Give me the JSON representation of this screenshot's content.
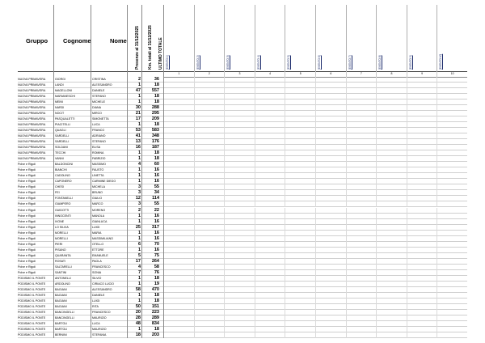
{
  "header": {
    "col_gruppo": "Gruppo",
    "col_cognome": "Cognome",
    "col_nome": "Nome",
    "col_presenze": "Presenze al 31/12/2025",
    "col_km": "Km. totali al 31/12/2025",
    "col_ultimo": "ULTIMO TOTALE"
  },
  "events": [
    "[EVENTO 1]",
    "[EVENTO 2]",
    "[EVENTO 3]",
    "[EVENTO 4]",
    "[EVENTO 5]",
    "[EVENTO 6]",
    "[EVENTO 7]",
    "[EVENTO 8]",
    "[EVENTO 9]",
    "[EVENTO 10]"
  ],
  "event_numbers": [
    "1",
    "2",
    "3",
    "4",
    "5",
    "6",
    "7",
    "8",
    "9",
    "10"
  ],
  "rows": [
    {
      "gruppo": "NUOVA PRIMAVERA",
      "cognome": "GIORGI",
      "nome": "CRISTINA",
      "presenze": "2",
      "km": "36",
      "cells": [
        "",
        "",
        "",
        "",
        "",
        "",
        "",
        "",
        "",
        ""
      ]
    },
    {
      "gruppo": "NUOVA PRIMAVERA",
      "cognome": "LANDI",
      "nome": "ALESSANDRO",
      "presenze": "1",
      "km": "18",
      "cells": [
        "",
        "",
        "",
        "",
        "",
        "",
        "",
        "",
        "",
        ""
      ]
    },
    {
      "gruppo": "NUOVA PRIMAVERA",
      "cognome": "MAGELLONI",
      "nome": "DANIELE",
      "presenze": "47",
      "km": "557",
      "cells": [
        "",
        "",
        "",
        "",
        "",
        "",
        "",
        "",
        "",
        ""
      ]
    },
    {
      "gruppo": "NUOVA PRIMAVERA",
      "cognome": "MARIANESCHI",
      "nome": "STEFANO",
      "presenze": "1",
      "km": "18",
      "cells": [
        "",
        "",
        "",
        "",
        "",
        "",
        "",
        "",
        "",
        ""
      ]
    },
    {
      "gruppo": "NUOVA PRIMAVERA",
      "cognome": "MEINI",
      "nome": "MICHELE",
      "presenze": "1",
      "km": "18",
      "cells": [
        "",
        "",
        "",
        "",
        "",
        "",
        "",
        "",
        "",
        ""
      ]
    },
    {
      "gruppo": "NUOVA PRIMAVERA",
      "cognome": "NARDI",
      "nome": "DIANA",
      "presenze": "30",
      "km": "288",
      "cells": [
        "",
        "",
        "",
        "",
        "",
        "",
        "",
        "",
        "",
        ""
      ]
    },
    {
      "gruppo": "NUOVA PRIMAVERA",
      "cognome": "NOCIT",
      "nome": "MIRCO",
      "presenze": "21",
      "km": "295",
      "cells": [
        "",
        "",
        "",
        "",
        "",
        "",
        "",
        "",
        "",
        ""
      ]
    },
    {
      "gruppo": "NUOVA PRIMAVERA",
      "cognome": "PASQUALETTI",
      "nome": "SIMONETTA",
      "presenze": "17",
      "km": "209",
      "cells": [
        "",
        "",
        "",
        "",
        "",
        "",
        "",
        "",
        "",
        ""
      ]
    },
    {
      "gruppo": "NUOVA PRIMAVERA",
      "cognome": "PIACITELLI",
      "nome": "LUCA",
      "presenze": "1",
      "km": "18",
      "cells": [
        "",
        "",
        "",
        "",
        "",
        "",
        "",
        "",
        "",
        ""
      ]
    },
    {
      "gruppo": "NUOVA PRIMAVERA",
      "cognome": "QUAGLI",
      "nome": "FRANCO",
      "presenze": "53",
      "km": "583",
      "cells": [
        "",
        "",
        "",
        "",
        "",
        "",
        "",
        "",
        "",
        ""
      ]
    },
    {
      "gruppo": "NUOVA PRIMAVERA",
      "cognome": "SARDELLI",
      "nome": "ADRIANO",
      "presenze": "41",
      "km": "348",
      "cells": [
        "",
        "",
        "",
        "",
        "",
        "",
        "",
        "",
        "",
        ""
      ]
    },
    {
      "gruppo": "NUOVA PRIMAVERA",
      "cognome": "SARDELLI",
      "nome": "STEFANO",
      "presenze": "13",
      "km": "176",
      "cells": [
        "",
        "",
        "",
        "",
        "",
        "",
        "",
        "",
        "",
        ""
      ]
    },
    {
      "gruppo": "NUOVA PRIMAVERA",
      "cognome": "SOLDANI",
      "nome": "ELISA",
      "presenze": "16",
      "km": "187",
      "cells": [
        "",
        "",
        "",
        "",
        "",
        "",
        "",
        "",
        "",
        ""
      ]
    },
    {
      "gruppo": "NUOVA PRIMAVERA",
      "cognome": "TECCHI",
      "nome": "ROMINA",
      "presenze": "1",
      "km": "18",
      "cells": [
        "",
        "",
        "",
        "",
        "",
        "",
        "",
        "",
        "",
        ""
      ]
    },
    {
      "gruppo": "NUOVA PRIMAVERA",
      "cognome": "VANNI",
      "nome": "FABRIZIO",
      "presenze": "1",
      "km": "18",
      "cells": [
        "",
        "",
        "",
        "",
        "",
        "",
        "",
        "",
        "",
        ""
      ]
    },
    {
      "gruppo": "Polve e Rigoli",
      "cognome": "BALDONCINI",
      "nome": "MASSIMO",
      "presenze": "4",
      "km": "60",
      "cells": [
        "",
        "",
        "",
        "",
        "",
        "",
        "",
        "",
        "",
        ""
      ]
    },
    {
      "gruppo": "Polve e Rigoli",
      "cognome": "BIANCHI",
      "nome": "FAUSTO",
      "presenze": "1",
      "km": "16",
      "cells": [
        "",
        "",
        "",
        "",
        "",
        "",
        "",
        "",
        "",
        ""
      ]
    },
    {
      "gruppo": "Polve e Rigoli",
      "cognome": "CADOLINO",
      "nome": "LINETTA",
      "presenze": "1",
      "km": "16",
      "cells": [
        "",
        "",
        "",
        "",
        "",
        "",
        "",
        "",
        "",
        ""
      ]
    },
    {
      "gruppo": "Polve e Rigoli",
      "cognome": "CAPONERO",
      "nome": "CARMINE DIEGO",
      "presenze": "1",
      "km": "16",
      "cells": [
        "",
        "",
        "",
        "",
        "",
        "",
        "",
        "",
        "",
        ""
      ]
    },
    {
      "gruppo": "Polve e Rigoli",
      "cognome": "CHESI",
      "nome": "MICHELA",
      "presenze": "3",
      "km": "55",
      "cells": [
        "",
        "",
        "",
        "",
        "",
        "",
        "",
        "",
        "",
        ""
      ]
    },
    {
      "gruppo": "Polve e Rigoli",
      "cognome": "FEI",
      "nome": "BRUNO",
      "presenze": "3",
      "km": "34",
      "cells": [
        "",
        "",
        "",
        "",
        "",
        "",
        "",
        "",
        "",
        ""
      ]
    },
    {
      "gruppo": "Polve e Rigoli",
      "cognome": "FONTANELLI",
      "nome": "GIULIO",
      "presenze": "12",
      "km": "114",
      "cells": [
        "",
        "",
        "",
        "",
        "",
        "",
        "",
        "",
        "",
        ""
      ]
    },
    {
      "gruppo": "Polve e Rigoli",
      "cognome": "GIAMPERO",
      "nome": "MARCO",
      "presenze": "3",
      "km": "55",
      "cells": [
        "",
        "",
        "",
        "",
        "",
        "",
        "",
        "",
        "",
        ""
      ]
    },
    {
      "gruppo": "Polve e Rigoli",
      "cognome": "GUIDOTTI",
      "nome": "MORENO",
      "presenze": "2",
      "km": "22",
      "cells": [
        "",
        "",
        "",
        "",
        "",
        "",
        "",
        "",
        "",
        ""
      ]
    },
    {
      "gruppo": "Polve e Rigoli",
      "cognome": "INNOCENTI",
      "nome": "MANOLA",
      "presenze": "1",
      "km": "16",
      "cells": [
        "",
        "",
        "",
        "",
        "",
        "",
        "",
        "",
        "",
        ""
      ]
    },
    {
      "gruppo": "Polve e Rigoli",
      "cognome": "IVONE",
      "nome": "GIANLUCA",
      "presenze": "1",
      "km": "16",
      "cells": [
        "",
        "",
        "",
        "",
        "",
        "",
        "",
        "",
        "",
        ""
      ]
    },
    {
      "gruppo": "Polve e Rigoli",
      "cognome": "LO SILVIA",
      "nome": "LUIGI",
      "presenze": "25",
      "km": "317",
      "cells": [
        "",
        "",
        "",
        "",
        "",
        "",
        "",
        "",
        "",
        ""
      ]
    },
    {
      "gruppo": "Polve e Rigoli",
      "cognome": "MORELLI",
      "nome": "MARIA",
      "presenze": "1",
      "km": "16",
      "cells": [
        "",
        "",
        "",
        "",
        "",
        "",
        "",
        "",
        "",
        ""
      ]
    },
    {
      "gruppo": "Polve e Rigoli",
      "cognome": "MORELLI",
      "nome": "MASSIMILIANO",
      "presenze": "1",
      "km": "16",
      "cells": [
        "",
        "",
        "",
        "",
        "",
        "",
        "",
        "",
        "",
        ""
      ]
    },
    {
      "gruppo": "Polve e Rigoli",
      "cognome": "PIERI",
      "nome": "OTELLO",
      "presenze": "6",
      "km": "70",
      "cells": [
        "",
        "",
        "",
        "",
        "",
        "",
        "",
        "",
        "",
        ""
      ]
    },
    {
      "gruppo": "Polve e Rigoli",
      "cognome": "PISANO",
      "nome": "ETTORE",
      "presenze": "1",
      "km": "16",
      "cells": [
        "",
        "",
        "",
        "",
        "",
        "",
        "",
        "",
        "",
        ""
      ]
    },
    {
      "gruppo": "Polve e Rigoli",
      "cognome": "QUARANTA",
      "nome": "EMANUELE",
      "presenze": "5",
      "km": "75",
      "cells": [
        "",
        "",
        "",
        "",
        "",
        "",
        "",
        "",
        "",
        ""
      ]
    },
    {
      "gruppo": "Polve e Rigoli",
      "cognome": "ROSATI",
      "nome": "PAOLA",
      "presenze": "17",
      "km": "264",
      "cells": [
        "",
        "",
        "",
        "",
        "",
        "",
        "",
        "",
        "",
        ""
      ]
    },
    {
      "gruppo": "Polve e Rigoli",
      "cognome": "SALTARELLI",
      "nome": "FRANCESCO",
      "presenze": "4",
      "km": "58",
      "cells": [
        "",
        "",
        "",
        "",
        "",
        "",
        "",
        "",
        "",
        ""
      ]
    },
    {
      "gruppo": "Polve e Rigoli",
      "cognome": "SANTINI",
      "nome": "SONIA",
      "presenze": "7",
      "km": "76",
      "cells": [
        "",
        "",
        "",
        "",
        "",
        "",
        "",
        "",
        "",
        ""
      ]
    },
    {
      "gruppo": "PODISMO IL PONTE",
      "cognome": "ANTONELLI",
      "nome": "SILVIO",
      "presenze": "1",
      "km": "18",
      "cells": [
        "",
        "",
        "",
        "",
        "",
        "",
        "",
        "",
        "",
        ""
      ]
    },
    {
      "gruppo": "PODISMO IL PONTE",
      "cognome": "ARDOLINO",
      "nome": "CIRIACO LUCIO",
      "presenze": "1",
      "km": "19",
      "cells": [
        "",
        "",
        "",
        "",
        "",
        "",
        "",
        "",
        "",
        ""
      ]
    },
    {
      "gruppo": "PODISMO IL PONTE",
      "cognome": "BAGIANI",
      "nome": "ALESSANDRO",
      "presenze": "58",
      "km": "470",
      "cells": [
        "",
        "",
        "",
        "",
        "",
        "",
        "",
        "",
        "",
        ""
      ]
    },
    {
      "gruppo": "PODISMO IL PONTE",
      "cognome": "BAGIANI",
      "nome": "DANIELE",
      "presenze": "1",
      "km": "18",
      "cells": [
        "",
        "",
        "",
        "",
        "",
        "",
        "",
        "",
        "",
        ""
      ]
    },
    {
      "gruppo": "PODISMO IL PONTE",
      "cognome": "BAGIANI",
      "nome": "LUIGI",
      "presenze": "1",
      "km": "18",
      "cells": [
        "",
        "",
        "",
        "",
        "",
        "",
        "",
        "",
        "",
        ""
      ]
    },
    {
      "gruppo": "PODISMO IL PONTE",
      "cognome": "BAGIANI",
      "nome": "RITA",
      "presenze": "50",
      "km": "151",
      "cells": [
        "",
        "",
        "",
        "",
        "",
        "",
        "",
        "",
        "",
        ""
      ]
    },
    {
      "gruppo": "PODISMO IL PONTE",
      "cognome": "BANCINGELLI",
      "nome": "FRANCESCO",
      "presenze": "20",
      "km": "223",
      "cells": [
        "",
        "",
        "",
        "",
        "",
        "",
        "",
        "",
        "",
        ""
      ]
    },
    {
      "gruppo": "PODISMO IL PONTE",
      "cognome": "BANCINGELLI",
      "nome": "MAURIZIO",
      "presenze": "28",
      "km": "289",
      "cells": [
        "",
        "",
        "",
        "",
        "",
        "",
        "",
        "",
        "",
        ""
      ]
    },
    {
      "gruppo": "PODISMO IL PONTE",
      "cognome": "BARTOLI",
      "nome": "LUCA",
      "presenze": "48",
      "km": "834",
      "cells": [
        "",
        "",
        "",
        "",
        "",
        "",
        "",
        "",
        "",
        ""
      ]
    },
    {
      "gruppo": "PODISMO IL PONTE",
      "cognome": "BARTOLI",
      "nome": "MAURIZIO",
      "presenze": "1",
      "km": "18",
      "cells": [
        "",
        "",
        "",
        "",
        "",
        "",
        "",
        "",
        "",
        ""
      ]
    },
    {
      "gruppo": "PODISMO IL PONTE",
      "cognome": "BERNINI",
      "nome": "STEFANIA",
      "presenze": "18",
      "km": "203",
      "cells": [
        "",
        "",
        "",
        "",
        "",
        "",
        "",
        "",
        "",
        ""
      ]
    }
  ]
}
